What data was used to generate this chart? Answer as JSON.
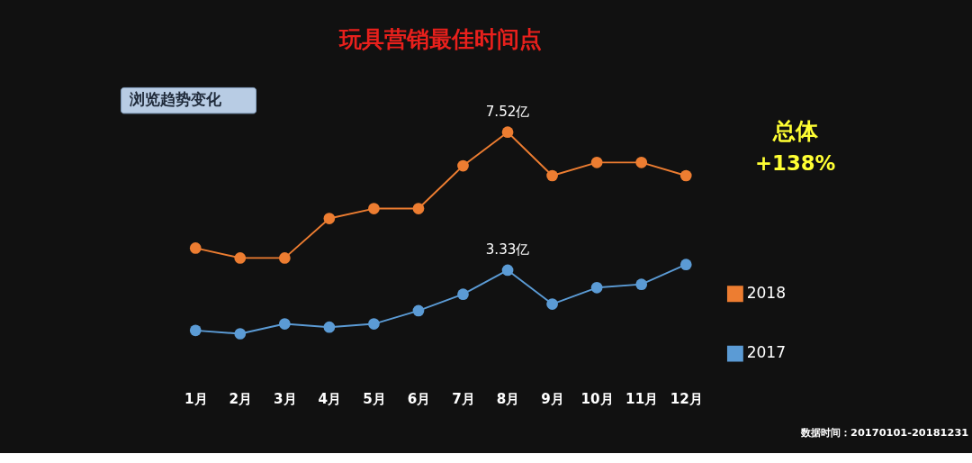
{
  "chart_data": {
    "type": "line",
    "title": "玩具营销最佳时间点",
    "legend": "right",
    "marker": "circle",
    "line_style": "solid",
    "tick_labels": "x",
    "categories": [
      "1月",
      "2月",
      "3月",
      "4月",
      "5月",
      "6月",
      "7月",
      "8月",
      "9月",
      "10月",
      "11月",
      "12月"
    ],
    "annotations": [
      "浏览趋势变化",
      "总体",
      "+138%",
      "数据时间：20170101-20181231"
    ],
    "series": [
      {
        "name": "2018",
        "color": "#ed7d31",
        "values": [
          4.0,
          3.7,
          3.7,
          4.9,
          5.2,
          5.2,
          6.5,
          7.52,
          6.2,
          6.6,
          6.6,
          6.2
        ],
        "value_labels": [
          null,
          null,
          null,
          null,
          null,
          null,
          null,
          "7.52亿",
          null,
          null,
          null,
          null
        ]
      },
      {
        "name": "2017",
        "color": "#5b9bd5",
        "values": [
          1.5,
          1.4,
          1.7,
          1.6,
          1.7,
          2.1,
          2.6,
          3.33,
          2.3,
          2.8,
          2.9,
          3.5
        ],
        "value_labels": [
          null,
          null,
          null,
          null,
          null,
          null,
          null,
          "3.33亿",
          null,
          null,
          null,
          null
        ]
      }
    ]
  }
}
